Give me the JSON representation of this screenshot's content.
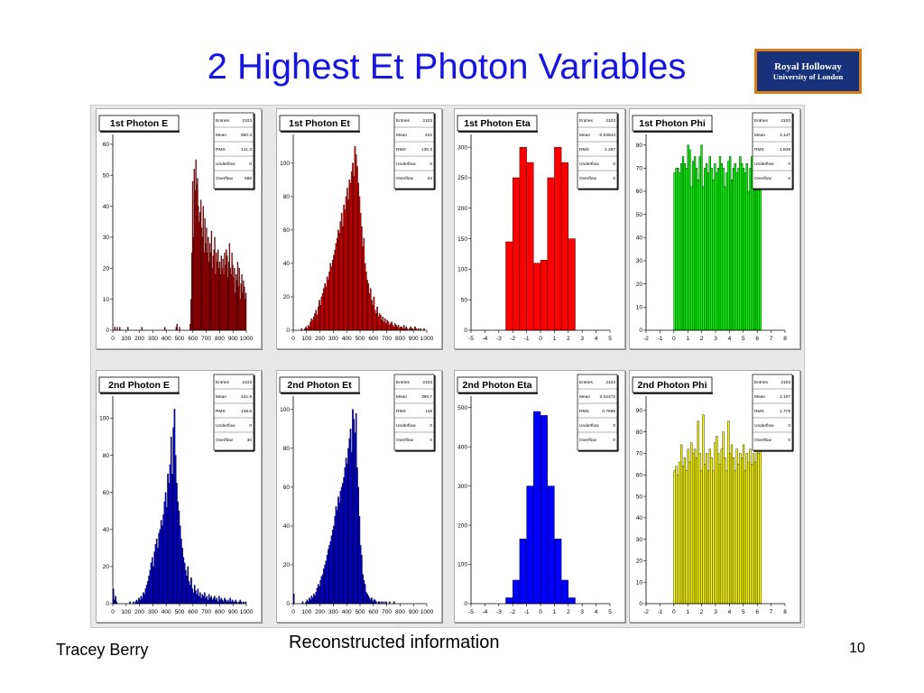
{
  "slide": {
    "title": "2 Highest Et Photon Variables",
    "logo_line1": "Royal Holloway",
    "logo_line2": "University of London",
    "author": "Tracey Berry",
    "caption": "Reconstructed information",
    "page_number": "10"
  },
  "chart_data": [
    {
      "type": "bar",
      "title": "1st Photon E",
      "color": "#ff0000",
      "stats": [
        [
          "Entries",
          "2103"
        ],
        [
          "Mean",
          "690.3"
        ],
        [
          "RMS",
          "141.3"
        ],
        [
          "Underflow",
          "0"
        ],
        [
          "Overflow",
          "686"
        ]
      ],
      "xlim": [
        0,
        1000
      ],
      "xticks": [
        "0",
        "100",
        "200",
        "300",
        "400",
        "500",
        "600",
        "700",
        "800",
        "900",
        "1000"
      ],
      "ylim": [
        0,
        62
      ],
      "yticks": [
        "0",
        "10",
        "20",
        "30",
        "40",
        "50",
        "60"
      ],
      "values": [
        0,
        0,
        1,
        0,
        0,
        1,
        0,
        0,
        1,
        0,
        0,
        0,
        0,
        0,
        0,
        0,
        0,
        0,
        1,
        0,
        0,
        0,
        0,
        0,
        0,
        0,
        0,
        0,
        0,
        0,
        0,
        0,
        0,
        0,
        0,
        1,
        0,
        0,
        0,
        0,
        0,
        0,
        0,
        0,
        0,
        0,
        0,
        0,
        0,
        0,
        0,
        0,
        0,
        0,
        0,
        0,
        0,
        0,
        0,
        0,
        0,
        0,
        0,
        1,
        0,
        0,
        0,
        0,
        0,
        0,
        0,
        0,
        0,
        0,
        0,
        0,
        0,
        1,
        2,
        0,
        0,
        1,
        0,
        0,
        0,
        0,
        0,
        0,
        0,
        0,
        0,
        0,
        0,
        0,
        2,
        10,
        25,
        48,
        30,
        52,
        45,
        55,
        47,
        49,
        40,
        35,
        38,
        42,
        33,
        30,
        40,
        25,
        36,
        28,
        33,
        25,
        30,
        22,
        28,
        25,
        32,
        20,
        24,
        26,
        30,
        18,
        25,
        22,
        26,
        20,
        22,
        18,
        24,
        20,
        23,
        18,
        25,
        21,
        26,
        24,
        17,
        22,
        28,
        20,
        18,
        25,
        21,
        17,
        20,
        12,
        18,
        16,
        22,
        14,
        20,
        10,
        15,
        18,
        12,
        16,
        14,
        10,
        12
      ]
    },
    {
      "type": "bar",
      "title": "1st Photon Et",
      "color": "#ff0000",
      "stats": [
        [
          "Entries",
          "2103"
        ],
        [
          "Mean",
          "422"
        ],
        [
          "RMS",
          "130.3"
        ],
        [
          "Underflow",
          "0"
        ],
        [
          "Overflow",
          "24"
        ]
      ],
      "xlim": [
        0,
        1000
      ],
      "xticks": [
        "0",
        "100",
        "200",
        "300",
        "400",
        "500",
        "600",
        "700",
        "800",
        "900",
        "1000"
      ],
      "ylim": [
        0,
        115
      ],
      "yticks": [
        "0",
        "20",
        "40",
        "60",
        "80",
        "100"
      ],
      "values": [
        0,
        0,
        0,
        0,
        0,
        0,
        0,
        1,
        0,
        0,
        1,
        2,
        1,
        3,
        2,
        5,
        7,
        6,
        8,
        10,
        12,
        9,
        14,
        18,
        15,
        20,
        22,
        25,
        28,
        26,
        32,
        30,
        35,
        40,
        38,
        42,
        45,
        48,
        52,
        55,
        60,
        58,
        65,
        70,
        62,
        75,
        72,
        80,
        85,
        78,
        90,
        88,
        95,
        100,
        92,
        110,
        105,
        98,
        88,
        80,
        70,
        62,
        50,
        55,
        40,
        35,
        30,
        28,
        22,
        25,
        18,
        15,
        20,
        12,
        10,
        14,
        8,
        10,
        9,
        6,
        8,
        5,
        7,
        4,
        6,
        5,
        3,
        4,
        5,
        3,
        2,
        4,
        3,
        2,
        3,
        1,
        2,
        2,
        1,
        3,
        1,
        2,
        1,
        0,
        1,
        2,
        1,
        1,
        0,
        2,
        1,
        0,
        1,
        0,
        1,
        0,
        0,
        1,
        0,
        0
      ]
    },
    {
      "type": "bar",
      "title": "1st Photon Eta",
      "color": "#ff0000",
      "stats": [
        [
          "Entries",
          "2103"
        ],
        [
          "Mean",
          "-0.02644"
        ],
        [
          "RMS",
          "1.287"
        ],
        [
          "Underflow",
          "0"
        ],
        [
          "Overflow",
          "0"
        ]
      ],
      "xlim": [
        -5,
        5
      ],
      "xticks": [
        "-5",
        "-4",
        "-3",
        "-2",
        "-1",
        "0",
        "1",
        "2",
        "3",
        "4",
        "5"
      ],
      "ylim": [
        0,
        315
      ],
      "yticks": [
        "0",
        "50",
        "100",
        "150",
        "200",
        "250",
        "300"
      ],
      "edges": [
        -2.5,
        -2.0,
        -1.5,
        -1.0,
        -0.5,
        0,
        0.5,
        1.0,
        1.5,
        2.0,
        2.5
      ],
      "values": [
        145,
        250,
        300,
        275,
        110,
        115,
        250,
        300,
        275,
        150
      ]
    },
    {
      "type": "bar",
      "title": "1st Photon Phi",
      "color": "#00ff00",
      "stats": [
        [
          "Entries",
          "2103"
        ],
        [
          "Mean",
          "3.147"
        ],
        [
          "RMS",
          "1.849"
        ],
        [
          "Underflow",
          "0"
        ],
        [
          "Overflow",
          "0"
        ]
      ],
      "xlim": [
        -2,
        8
      ],
      "xticks": [
        "-2",
        "-1",
        "0",
        "1",
        "2",
        "3",
        "4",
        "5",
        "6",
        "7",
        "8"
      ],
      "ylim": [
        0,
        83
      ],
      "yticks": [
        "0",
        "10",
        "20",
        "30",
        "40",
        "50",
        "60",
        "70",
        "80"
      ],
      "edges_range": [
        0,
        6.2832
      ],
      "values": [
        68,
        70,
        70,
        68,
        72,
        75,
        72,
        70,
        80,
        78,
        62,
        73,
        75,
        70,
        65,
        75,
        80,
        62,
        70,
        72,
        68,
        75,
        70,
        65,
        72,
        68,
        70,
        75,
        72,
        70,
        62,
        68,
        73,
        75,
        65,
        70,
        72,
        68,
        70,
        75,
        72,
        70,
        68,
        72,
        60,
        70,
        75,
        73,
        72,
        76,
        75,
        74
      ]
    },
    {
      "type": "bar",
      "title": "2nd Photon E",
      "color": "#0000ff",
      "stats": [
        [
          "Entries",
          "2103"
        ],
        [
          "Mean",
          "431.9"
        ],
        [
          "RMS",
          "138.6"
        ],
        [
          "Underflow",
          "0"
        ],
        [
          "Overflow",
          "30"
        ]
      ],
      "xlim": [
        0,
        1000
      ],
      "xticks": [
        "0",
        "100",
        "200",
        "300",
        "400",
        "500",
        "600",
        "700",
        "800",
        "900",
        "1000"
      ],
      "ylim": [
        0,
        110
      ],
      "yticks": [
        "0",
        "20",
        "40",
        "60",
        "80",
        "100"
      ],
      "values": [
        8,
        2,
        4,
        1,
        0,
        0,
        0,
        0,
        0,
        0,
        0,
        0,
        0,
        0,
        0,
        1,
        0,
        0,
        1,
        0,
        1,
        2,
        1,
        3,
        2,
        4,
        3,
        6,
        5,
        8,
        10,
        12,
        15,
        18,
        22,
        25,
        20,
        28,
        32,
        35,
        30,
        38,
        40,
        45,
        42,
        48,
        55,
        60,
        52,
        70,
        65,
        75,
        90,
        70,
        95,
        105,
        80,
        65,
        55,
        50,
        42,
        35,
        30,
        25,
        22,
        18,
        15,
        20,
        12,
        10,
        14,
        8,
        6,
        10,
        7,
        5,
        8,
        4,
        6,
        3,
        5,
        4,
        6,
        3,
        4,
        2,
        5,
        3,
        4,
        2,
        3,
        4,
        2,
        3,
        1,
        4,
        2,
        3,
        2,
        1,
        3,
        2,
        1,
        2,
        1,
        3,
        1,
        2,
        1,
        1,
        2,
        1,
        0,
        1,
        2,
        1,
        0,
        1,
        0,
        1
      ]
    },
    {
      "type": "bar",
      "title": "2nd Photon Et",
      "color": "#0000ff",
      "stats": [
        [
          "Entries",
          "2103"
        ],
        [
          "Mean",
          "369.7"
        ],
        [
          "RMS",
          "118"
        ],
        [
          "Underflow",
          "0"
        ],
        [
          "Overflow",
          "0"
        ]
      ],
      "xlim": [
        0,
        1000
      ],
      "xticks": [
        "0",
        "100",
        "200",
        "300",
        "400",
        "500",
        "600",
        "700",
        "800",
        "900",
        "1000"
      ],
      "ylim": [
        0,
        105
      ],
      "yticks": [
        "0",
        "20",
        "40",
        "60",
        "80",
        "100"
      ],
      "values": [
        5,
        0,
        0,
        0,
        0,
        0,
        0,
        0,
        1,
        0,
        0,
        1,
        2,
        1,
        3,
        2,
        4,
        3,
        5,
        4,
        6,
        8,
        10,
        9,
        12,
        14,
        15,
        18,
        20,
        22,
        25,
        28,
        30,
        32,
        35,
        38,
        40,
        45,
        50,
        48,
        55,
        52,
        58,
        60,
        62,
        65,
        70,
        75,
        72,
        80,
        85,
        90,
        78,
        100,
        95,
        88,
        98,
        70,
        60,
        45,
        30,
        25,
        15,
        12,
        10,
        6,
        5,
        4,
        3,
        2,
        3,
        1,
        2,
        2,
        1,
        0,
        1,
        1,
        0,
        1,
        0,
        1,
        0,
        1,
        0,
        0,
        1,
        0,
        0,
        0,
        1,
        0,
        0,
        0,
        0,
        0,
        0,
        0,
        0,
        0,
        0,
        0,
        0,
        0,
        0,
        0,
        0,
        0,
        0,
        0,
        0,
        0,
        0,
        0,
        0,
        0,
        0,
        0,
        0,
        0
      ]
    },
    {
      "type": "bar",
      "title": "2nd Photon Eta",
      "color": "#0000ff",
      "stats": [
        [
          "Entries",
          "2103"
        ],
        [
          "Mean",
          "0.02472"
        ],
        [
          "RMS",
          "0.7696"
        ],
        [
          "Underflow",
          "0"
        ],
        [
          "Overflow",
          "0"
        ]
      ],
      "xlim": [
        -5,
        5
      ],
      "xticks": [
        "-5",
        "-4",
        "-3",
        "-2",
        "-1",
        "0",
        "1",
        "2",
        "3",
        "4",
        "5"
      ],
      "ylim": [
        0,
        520
      ],
      "yticks": [
        "0",
        "100",
        "200",
        "300",
        "400",
        "500"
      ],
      "edges": [
        -2.5,
        -2.0,
        -1.5,
        -1.0,
        -0.5,
        0,
        0.5,
        1.0,
        1.5,
        2.0,
        2.5
      ],
      "values": [
        15,
        60,
        165,
        300,
        490,
        480,
        300,
        165,
        60,
        15
      ]
    },
    {
      "type": "bar",
      "title": "2nd Photon Phi",
      "color": "#ffff00",
      "stats": [
        [
          "Entries",
          "2103"
        ],
        [
          "Mean",
          "3.187"
        ],
        [
          "RMS",
          "1.776"
        ],
        [
          "Underflow",
          "0"
        ],
        [
          "Overflow",
          "0"
        ]
      ],
      "xlim": [
        -2,
        8
      ],
      "xticks": [
        "-2",
        "-1",
        "0",
        "1",
        "2",
        "3",
        "4",
        "5",
        "6",
        "7",
        "8"
      ],
      "ylim": [
        0,
        95
      ],
      "yticks": [
        "0",
        "10",
        "20",
        "30",
        "40",
        "50",
        "60",
        "70",
        "80",
        "90"
      ],
      "edges_range": [
        0,
        6.2832
      ],
      "values": [
        62,
        64,
        60,
        66,
        74,
        64,
        68,
        62,
        72,
        66,
        75,
        70,
        72,
        68,
        85,
        70,
        62,
        88,
        65,
        70,
        62,
        72,
        68,
        62,
        75,
        78,
        70,
        65,
        72,
        80,
        68,
        62,
        85,
        70,
        74,
        68,
        62,
        72,
        65,
        70,
        68,
        74,
        62,
        70,
        66,
        72,
        65,
        70,
        66,
        74,
        70,
        72
      ]
    }
  ]
}
